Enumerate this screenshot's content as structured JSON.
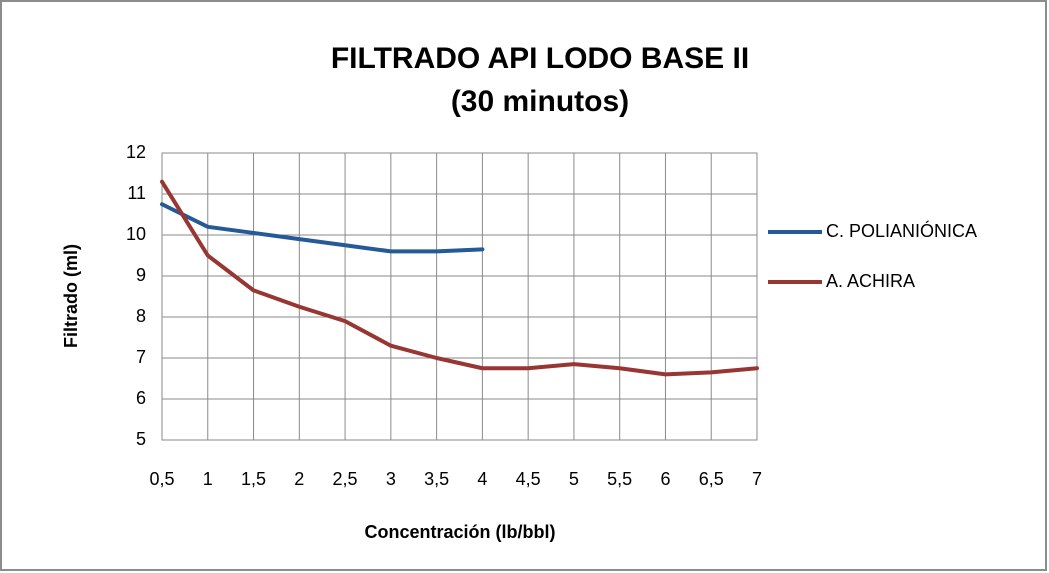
{
  "chart_data": {
    "type": "line",
    "title": "FILTRADO API LODO BASE II",
    "subtitle": "(30 minutos)",
    "x_label": "Concentración (lb/bbl)",
    "y_label": "Filtrado (ml)",
    "categories": [
      "0,5",
      "1",
      "1,5",
      "2",
      "2,5",
      "3",
      "3,5",
      "4",
      "4,5",
      "5",
      "5,5",
      "6",
      "6,5",
      "7"
    ],
    "series": [
      {
        "name": "C. POLIANIÓNICA",
        "color": "#245a97",
        "values": [
          10.75,
          10.2,
          10.05,
          9.9,
          9.75,
          9.6,
          9.6,
          9.65,
          null,
          null,
          null,
          null,
          null,
          null
        ]
      },
      {
        "name": "A. ACHIRA",
        "color": "#983634",
        "values": [
          11.3,
          9.5,
          8.65,
          8.25,
          7.9,
          7.3,
          7.0,
          6.75,
          6.75,
          6.85,
          6.75,
          6.6,
          6.65,
          6.75
        ]
      }
    ],
    "ylim": [
      5,
      12
    ],
    "yticks": [
      5,
      6,
      7,
      8,
      9,
      10,
      11,
      12
    ],
    "grid": true,
    "legend": "right"
  }
}
